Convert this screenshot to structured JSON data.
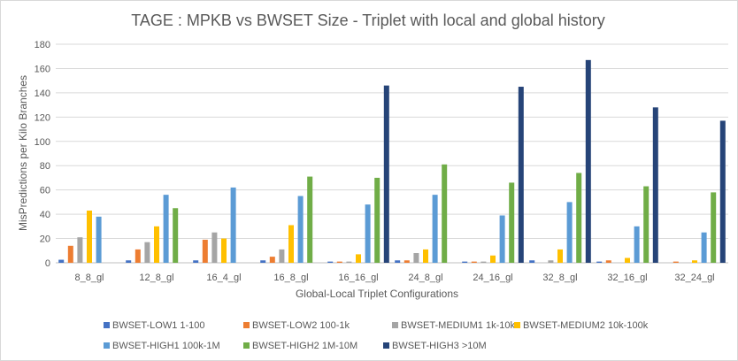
{
  "chart_data": {
    "type": "bar",
    "title": "TAGE : MPKB vs BWSET Size - Triplet with local and global history",
    "xlabel": "Global-Local Triplet Configurations",
    "ylabel": "MisPredictions per Kilo Branches",
    "ylim": [
      0,
      180
    ],
    "yticks": [
      0,
      20,
      40,
      60,
      80,
      100,
      120,
      140,
      160,
      180
    ],
    "grid": true,
    "legend_position": "bottom",
    "categories": [
      "8_8_gl",
      "12_8_gl",
      "16_4_gl",
      "16_8_gl",
      "16_16_gl",
      "24_8_gl",
      "24_16_gl",
      "32_8_gl",
      "32_16_gl",
      "32_24_gl"
    ],
    "series": [
      {
        "name": "BWSET-LOW1 1-100",
        "color": "#4472c4",
        "values": [
          2.5,
          2,
          2,
          2,
          1,
          2,
          1,
          2,
          1,
          0
        ]
      },
      {
        "name": "BWSET-LOW2 100-1k",
        "color": "#ed7d31",
        "values": [
          14,
          11,
          19,
          5,
          1,
          2,
          1,
          0,
          2,
          1
        ]
      },
      {
        "name": "BWSET-MEDIUM1 1k-10k",
        "color": "#a5a5a5",
        "values": [
          21,
          17,
          25,
          11,
          1,
          8,
          1,
          2,
          0,
          0
        ]
      },
      {
        "name": "BWSET-MEDIUM2  10k-100k",
        "color": "#ffc000",
        "values": [
          43,
          30,
          20,
          31,
          7,
          11,
          6,
          11,
          4,
          2
        ]
      },
      {
        "name": "BWSET-HIGH1 100k-1M",
        "color": "#5b9bd5",
        "values": [
          38,
          56,
          62,
          55,
          48,
          56,
          39,
          50,
          30,
          25
        ]
      },
      {
        "name": "BWSET-HIGH2 1M-10M",
        "color": "#70ad47",
        "values": [
          0,
          45,
          0,
          71,
          70,
          81,
          66,
          74,
          63,
          58
        ]
      },
      {
        "name": "BWSET-HIGH3 >10M",
        "color": "#264478",
        "values": [
          0,
          0,
          0,
          0,
          146,
          0,
          145,
          167,
          128,
          117
        ]
      }
    ]
  }
}
